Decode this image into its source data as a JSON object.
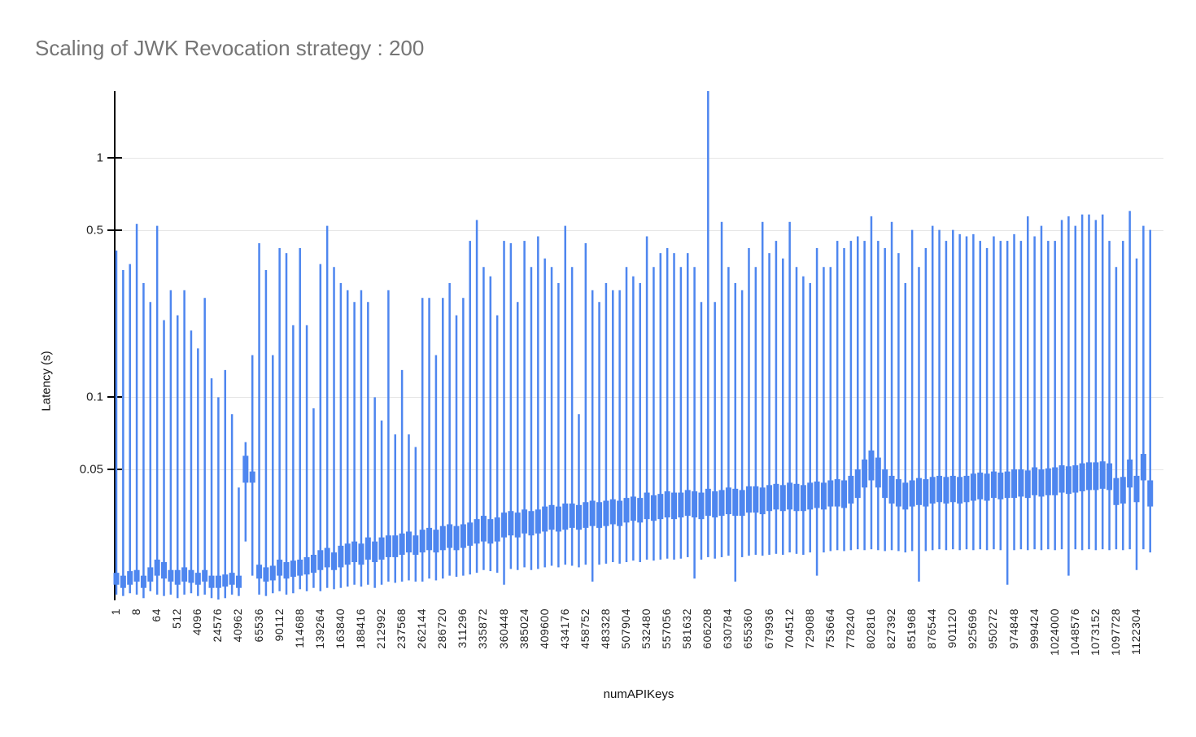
{
  "title": "Scaling of JWK Revocation strategy : 200",
  "colors": {
    "candle": "#4e86ef",
    "gridline": "#e6e6e6",
    "axis": "#000000",
    "title_text": "#757575",
    "tick_text": "#222222"
  },
  "chart_data": {
    "type": "candlestick",
    "title": "Scaling of JWK Revocation strategy : 200",
    "xlabel": "numAPIKeys",
    "ylabel": "Latency (s)",
    "y_scale": "log",
    "ylim": [
      0.0143,
      1.93
    ],
    "grid": true,
    "legend_position": "none",
    "y_ticks": [
      1,
      0.5,
      0.1,
      0.05
    ],
    "y_tick_labels": [
      "1",
      "0.5",
      "0.1",
      "0.05"
    ],
    "candles_per_category": 3,
    "categories": [
      "1",
      "8",
      "64",
      "512",
      "4096",
      "24576",
      "40962",
      "65536",
      "90112",
      "114688",
      "139264",
      "163840",
      "188416",
      "212992",
      "237568",
      "262144",
      "286720",
      "311296",
      "335872",
      "360448",
      "385024",
      "409600",
      "434176",
      "458752",
      "483328",
      "507904",
      "532480",
      "557056",
      "581632",
      "606208",
      "630784",
      "655360",
      "679936",
      "704512",
      "729088",
      "753664",
      "778240",
      "802816",
      "827392",
      "851968",
      "876544",
      "901120",
      "925696",
      "950272",
      "974848",
      "999424",
      "1024000",
      "1048576",
      "1073152",
      "1097728",
      "1122304"
    ],
    "candles_format": [
      "low",
      "open",
      "close",
      "high"
    ],
    "candles": [
      [
        0.015,
        0.0165,
        0.0185,
        0.41
      ],
      [
        0.0148,
        0.016,
        0.018,
        0.34
      ],
      [
        0.0152,
        0.0165,
        0.0188,
        0.36
      ],
      [
        0.015,
        0.017,
        0.019,
        0.53
      ],
      [
        0.0145,
        0.016,
        0.018,
        0.3
      ],
      [
        0.0155,
        0.017,
        0.0195,
        0.25
      ],
      [
        0.015,
        0.018,
        0.021,
        0.52
      ],
      [
        0.0148,
        0.0175,
        0.0205,
        0.21
      ],
      [
        0.015,
        0.017,
        0.019,
        0.28
      ],
      [
        0.0145,
        0.0165,
        0.019,
        0.22
      ],
      [
        0.015,
        0.017,
        0.0195,
        0.28
      ],
      [
        0.0152,
        0.0168,
        0.019,
        0.19
      ],
      [
        0.0148,
        0.0165,
        0.0185,
        0.16
      ],
      [
        0.015,
        0.017,
        0.019,
        0.26
      ],
      [
        0.0145,
        0.016,
        0.018,
        0.12
      ],
      [
        0.0142,
        0.016,
        0.018,
        0.1
      ],
      [
        0.0145,
        0.0162,
        0.0182,
        0.13
      ],
      [
        0.015,
        0.0165,
        0.0185,
        0.085
      ],
      [
        0.0148,
        0.016,
        0.018,
        0.042
      ],
      [
        0.025,
        0.044,
        0.057,
        0.065
      ],
      [
        0.018,
        0.044,
        0.049,
        0.15
      ],
      [
        0.015,
        0.0175,
        0.02,
        0.44
      ],
      [
        0.0148,
        0.017,
        0.0195,
        0.34
      ],
      [
        0.0152,
        0.0172,
        0.0198,
        0.15
      ],
      [
        0.0155,
        0.018,
        0.021,
        0.42
      ],
      [
        0.015,
        0.0175,
        0.0205,
        0.4
      ],
      [
        0.0152,
        0.0178,
        0.0208,
        0.2
      ],
      [
        0.0158,
        0.018,
        0.021,
        0.42
      ],
      [
        0.0155,
        0.0182,
        0.0215,
        0.2
      ],
      [
        0.016,
        0.0185,
        0.022,
        0.09
      ],
      [
        0.0155,
        0.019,
        0.023,
        0.36
      ],
      [
        0.016,
        0.0195,
        0.0235,
        0.52
      ],
      [
        0.0158,
        0.019,
        0.0225,
        0.35
      ],
      [
        0.016,
        0.0195,
        0.024,
        0.3
      ],
      [
        0.0162,
        0.02,
        0.0245,
        0.28
      ],
      [
        0.0165,
        0.0205,
        0.025,
        0.25
      ],
      [
        0.0162,
        0.02,
        0.0245,
        0.28
      ],
      [
        0.0165,
        0.021,
        0.026,
        0.25
      ],
      [
        0.016,
        0.0205,
        0.025,
        0.1
      ],
      [
        0.0165,
        0.021,
        0.026,
        0.08
      ],
      [
        0.017,
        0.0215,
        0.0265,
        0.28
      ],
      [
        0.0168,
        0.0215,
        0.0265,
        0.07
      ],
      [
        0.017,
        0.022,
        0.027,
        0.13
      ],
      [
        0.0172,
        0.0225,
        0.0275,
        0.07
      ],
      [
        0.017,
        0.022,
        0.0265,
        0.062
      ],
      [
        0.017,
        0.0225,
        0.028,
        0.26
      ],
      [
        0.0175,
        0.023,
        0.0285,
        0.26
      ],
      [
        0.0172,
        0.0225,
        0.028,
        0.15
      ],
      [
        0.0175,
        0.023,
        0.029,
        0.26
      ],
      [
        0.018,
        0.0235,
        0.0295,
        0.3
      ],
      [
        0.0178,
        0.023,
        0.029,
        0.22
      ],
      [
        0.018,
        0.0235,
        0.0295,
        0.26
      ],
      [
        0.0182,
        0.024,
        0.03,
        0.45
      ],
      [
        0.0185,
        0.0245,
        0.031,
        0.55
      ],
      [
        0.019,
        0.025,
        0.032,
        0.35
      ],
      [
        0.0188,
        0.0245,
        0.031,
        0.32
      ],
      [
        0.0185,
        0.025,
        0.0315,
        0.22
      ],
      [
        0.0165,
        0.026,
        0.033,
        0.45
      ],
      [
        0.0192,
        0.0265,
        0.0335,
        0.44
      ],
      [
        0.019,
        0.026,
        0.033,
        0.25
      ],
      [
        0.0195,
        0.027,
        0.034,
        0.45
      ],
      [
        0.019,
        0.0265,
        0.0335,
        0.35
      ],
      [
        0.0192,
        0.027,
        0.034,
        0.47
      ],
      [
        0.0195,
        0.0275,
        0.035,
        0.38
      ],
      [
        0.0198,
        0.028,
        0.0355,
        0.35
      ],
      [
        0.0195,
        0.0275,
        0.035,
        0.3
      ],
      [
        0.02,
        0.028,
        0.036,
        0.52
      ],
      [
        0.0198,
        0.0285,
        0.036,
        0.35
      ],
      [
        0.0195,
        0.028,
        0.0355,
        0.085
      ],
      [
        0.02,
        0.0285,
        0.0365,
        0.44
      ],
      [
        0.017,
        0.029,
        0.037,
        0.28
      ],
      [
        0.02,
        0.0285,
        0.0365,
        0.25
      ],
      [
        0.0202,
        0.029,
        0.037,
        0.3
      ],
      [
        0.0205,
        0.0295,
        0.0375,
        0.28
      ],
      [
        0.0202,
        0.029,
        0.037,
        0.28
      ],
      [
        0.0205,
        0.03,
        0.038,
        0.35
      ],
      [
        0.0208,
        0.0305,
        0.0385,
        0.32
      ],
      [
        0.0205,
        0.03,
        0.038,
        0.3
      ],
      [
        0.021,
        0.031,
        0.04,
        0.47
      ],
      [
        0.0208,
        0.0305,
        0.039,
        0.35
      ],
      [
        0.021,
        0.031,
        0.0395,
        0.4
      ],
      [
        0.0212,
        0.0315,
        0.0405,
        0.42
      ],
      [
        0.021,
        0.031,
        0.04,
        0.4
      ],
      [
        0.0212,
        0.0315,
        0.04,
        0.35
      ],
      [
        0.0215,
        0.032,
        0.041,
        0.4
      ],
      [
        0.0175,
        0.0315,
        0.0405,
        0.35
      ],
      [
        0.021,
        0.031,
        0.04,
        0.25
      ],
      [
        0.0215,
        0.032,
        0.0415,
        1.9
      ],
      [
        0.0212,
        0.0315,
        0.0405,
        0.25
      ],
      [
        0.0215,
        0.032,
        0.041,
        0.54
      ],
      [
        0.0218,
        0.0325,
        0.042,
        0.35
      ],
      [
        0.017,
        0.032,
        0.0415,
        0.3
      ],
      [
        0.0215,
        0.032,
        0.041,
        0.28
      ],
      [
        0.0218,
        0.033,
        0.0425,
        0.42
      ],
      [
        0.022,
        0.033,
        0.0425,
        0.35
      ],
      [
        0.0218,
        0.0325,
        0.042,
        0.54
      ],
      [
        0.022,
        0.0335,
        0.043,
        0.4
      ],
      [
        0.0222,
        0.034,
        0.0435,
        0.45
      ],
      [
        0.022,
        0.0335,
        0.043,
        0.38
      ],
      [
        0.0225,
        0.034,
        0.044,
        0.54
      ],
      [
        0.0222,
        0.0335,
        0.0435,
        0.35
      ],
      [
        0.022,
        0.0335,
        0.043,
        0.32
      ],
      [
        0.0225,
        0.034,
        0.044,
        0.3
      ],
      [
        0.018,
        0.0345,
        0.0445,
        0.42
      ],
      [
        0.0225,
        0.034,
        0.044,
        0.35
      ],
      [
        0.0228,
        0.035,
        0.045,
        0.35
      ],
      [
        0.023,
        0.035,
        0.0455,
        0.45
      ],
      [
        0.0228,
        0.0345,
        0.045,
        0.42
      ],
      [
        0.023,
        0.036,
        0.047,
        0.45
      ],
      [
        0.0232,
        0.038,
        0.05,
        0.47
      ],
      [
        0.023,
        0.042,
        0.055,
        0.45
      ],
      [
        0.0232,
        0.045,
        0.06,
        0.57
      ],
      [
        0.023,
        0.042,
        0.056,
        0.45
      ],
      [
        0.0228,
        0.038,
        0.05,
        0.42
      ],
      [
        0.023,
        0.036,
        0.047,
        0.54
      ],
      [
        0.0228,
        0.035,
        0.0455,
        0.4
      ],
      [
        0.0225,
        0.034,
        0.044,
        0.3
      ],
      [
        0.0228,
        0.035,
        0.045,
        0.5
      ],
      [
        0.017,
        0.0355,
        0.046,
        0.35
      ],
      [
        0.0228,
        0.035,
        0.0455,
        0.42
      ],
      [
        0.023,
        0.036,
        0.0465,
        0.52
      ],
      [
        0.0232,
        0.0365,
        0.047,
        0.5
      ],
      [
        0.023,
        0.036,
        0.0465,
        0.45
      ],
      [
        0.0232,
        0.0365,
        0.047,
        0.5
      ],
      [
        0.023,
        0.036,
        0.0465,
        0.48
      ],
      [
        0.0232,
        0.0365,
        0.047,
        0.47
      ],
      [
        0.023,
        0.037,
        0.048,
        0.48
      ],
      [
        0.0232,
        0.0375,
        0.0485,
        0.45
      ],
      [
        0.023,
        0.037,
        0.048,
        0.42
      ],
      [
        0.0232,
        0.038,
        0.049,
        0.47
      ],
      [
        0.023,
        0.0375,
        0.0485,
        0.45
      ],
      [
        0.0165,
        0.038,
        0.049,
        0.45
      ],
      [
        0.023,
        0.038,
        0.05,
        0.48
      ],
      [
        0.0232,
        0.0385,
        0.05,
        0.45
      ],
      [
        0.023,
        0.038,
        0.0495,
        0.57
      ],
      [
        0.0232,
        0.039,
        0.051,
        0.47
      ],
      [
        0.023,
        0.0385,
        0.05,
        0.52
      ],
      [
        0.0232,
        0.039,
        0.0505,
        0.45
      ],
      [
        0.023,
        0.039,
        0.051,
        0.45
      ],
      [
        0.0232,
        0.04,
        0.052,
        0.55
      ],
      [
        0.018,
        0.0395,
        0.0515,
        0.57
      ],
      [
        0.0232,
        0.04,
        0.052,
        0.52
      ],
      [
        0.023,
        0.0405,
        0.053,
        0.58
      ],
      [
        0.0232,
        0.041,
        0.0535,
        0.58
      ],
      [
        0.023,
        0.041,
        0.0535,
        0.55
      ],
      [
        0.0232,
        0.0415,
        0.054,
        0.58
      ],
      [
        0.023,
        0.041,
        0.053,
        0.45
      ],
      [
        0.0232,
        0.0355,
        0.046,
        0.35
      ],
      [
        0.023,
        0.036,
        0.0465,
        0.45
      ],
      [
        0.0232,
        0.042,
        0.055,
        0.6
      ],
      [
        0.019,
        0.0365,
        0.047,
        0.38
      ],
      [
        0.0232,
        0.045,
        0.058,
        0.52
      ],
      [
        0.0225,
        0.035,
        0.045,
        0.5
      ]
    ]
  }
}
